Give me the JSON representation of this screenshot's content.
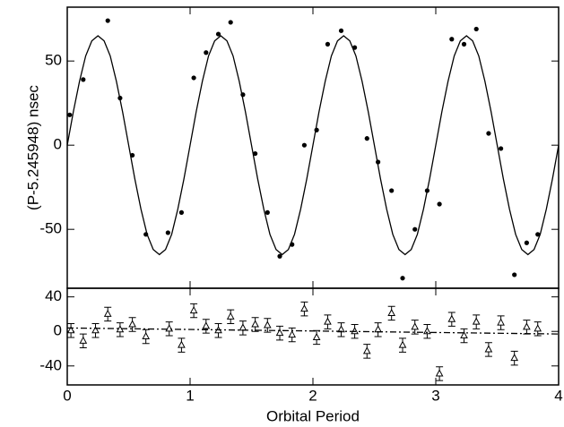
{
  "chart_data": [
    {
      "type": "scatter",
      "ylabel": "(P-5.245948) nsec",
      "xlim": [
        0,
        4
      ],
      "xticks": [
        0,
        1,
        2,
        3,
        4
      ],
      "ylim": [
        -85,
        82
      ],
      "yticks": [
        50,
        0,
        -50
      ],
      "series": [
        {
          "style": "dots",
          "color": "#000000",
          "x": [
            0.02,
            0.13,
            0.33,
            0.43,
            0.53,
            0.64,
            0.82,
            0.93,
            1.03,
            1.13,
            1.23,
            1.33,
            1.43,
            1.53,
            1.63,
            1.73,
            1.83,
            1.93,
            2.03,
            2.12,
            2.23,
            2.34,
            2.44,
            2.53,
            2.64,
            2.73,
            2.83,
            2.93,
            3.03,
            3.13,
            3.23,
            3.33,
            3.43,
            3.53,
            3.64,
            3.74,
            3.83
          ],
          "values": [
            18,
            39,
            74,
            28,
            -6,
            -53,
            -52,
            -40,
            40,
            55,
            66,
            73,
            30,
            -5,
            -40,
            -66,
            -59,
            0,
            9,
            60,
            68,
            58,
            4,
            -10,
            -27,
            -79,
            -50,
            -27,
            -35,
            63,
            60,
            69,
            7,
            -2,
            -77,
            -58,
            -53
          ]
        },
        {
          "style": "line",
          "color": "#000000",
          "x": [
            0,
            0.05,
            0.1,
            0.15,
            0.2,
            0.25,
            0.3,
            0.35,
            0.4,
            0.45,
            0.5,
            0.55,
            0.6,
            0.65,
            0.7,
            0.75,
            0.8,
            0.85,
            0.9,
            0.95,
            1,
            1.05,
            1.1,
            1.15,
            1.2,
            1.25,
            1.3,
            1.35,
            1.4,
            1.45,
            1.5,
            1.55,
            1.6,
            1.65,
            1.7,
            1.75,
            1.8,
            1.85,
            1.9,
            1.95,
            2,
            2.05,
            2.1,
            2.15,
            2.2,
            2.25,
            2.3,
            2.35,
            2.4,
            2.45,
            2.5,
            2.55,
            2.6,
            2.65,
            2.7,
            2.75,
            2.8,
            2.85,
            2.9,
            2.95,
            3,
            3.05,
            3.1,
            3.15,
            3.2,
            3.25,
            3.3,
            3.35,
            3.4,
            3.45,
            3.5,
            3.55,
            3.6,
            3.65,
            3.7,
            3.75,
            3.8,
            3.85,
            3.9,
            3.95,
            4
          ],
          "values": [
            0,
            20,
            38,
            53,
            62,
            65,
            62,
            53,
            38,
            20,
            0,
            -20,
            -38,
            -53,
            -62,
            -65,
            -62,
            -53,
            -38,
            -20,
            0,
            20,
            38,
            53,
            62,
            65,
            62,
            53,
            38,
            20,
            0,
            -20,
            -38,
            -53,
            -62,
            -65,
            -62,
            -53,
            -38,
            -20,
            0,
            20,
            38,
            53,
            62,
            65,
            62,
            53,
            38,
            20,
            0,
            -20,
            -38,
            -53,
            -62,
            -65,
            -62,
            -53,
            -38,
            -20,
            0,
            20,
            38,
            53,
            62,
            65,
            62,
            53,
            38,
            20,
            0,
            -20,
            -38,
            -53,
            -62,
            -65,
            -62,
            -53,
            -38,
            -20,
            0
          ]
        }
      ]
    },
    {
      "type": "scatter",
      "xlabel": "Orbital Period",
      "xlim": [
        0,
        4
      ],
      "xticks": [
        0,
        1,
        2,
        3,
        4
      ],
      "ylim": [
        -62,
        50
      ],
      "yticks": [
        40,
        0,
        -40
      ],
      "series": [
        {
          "style": "triangles",
          "color": "#000000",
          "x": [
            0.03,
            0.13,
            0.23,
            0.33,
            0.43,
            0.53,
            0.64,
            0.83,
            0.93,
            1.03,
            1.13,
            1.23,
            1.33,
            1.43,
            1.53,
            1.63,
            1.73,
            1.83,
            1.93,
            2.03,
            2.12,
            2.23,
            2.34,
            2.44,
            2.53,
            2.64,
            2.73,
            2.83,
            2.93,
            3.03,
            3.13,
            3.23,
            3.33,
            3.43,
            3.53,
            3.64,
            3.74,
            3.83
          ],
          "values": [
            1,
            -11,
            1,
            20,
            2,
            8,
            -6,
            3,
            -16,
            24,
            6,
            1,
            17,
            4,
            8,
            7,
            -2,
            -4,
            26,
            -7,
            11,
            2,
            0,
            -23,
            2,
            21,
            -16,
            5,
            0,
            -49,
            14,
            -5,
            11,
            -21,
            10,
            -31,
            5,
            3
          ],
          "errors": [
            8,
            8,
            8,
            8,
            8,
            8,
            8,
            8,
            8,
            8,
            8,
            8,
            8,
            8,
            8,
            8,
            8,
            8,
            8,
            8,
            8,
            8,
            8,
            8,
            8,
            8,
            8,
            8,
            8,
            8,
            8,
            8,
            8,
            8,
            8,
            8,
            8,
            8
          ]
        },
        {
          "style": "dashdot",
          "color": "#000000",
          "x": [
            0,
            4
          ],
          "values": [
            4,
            -3
          ]
        }
      ]
    }
  ]
}
